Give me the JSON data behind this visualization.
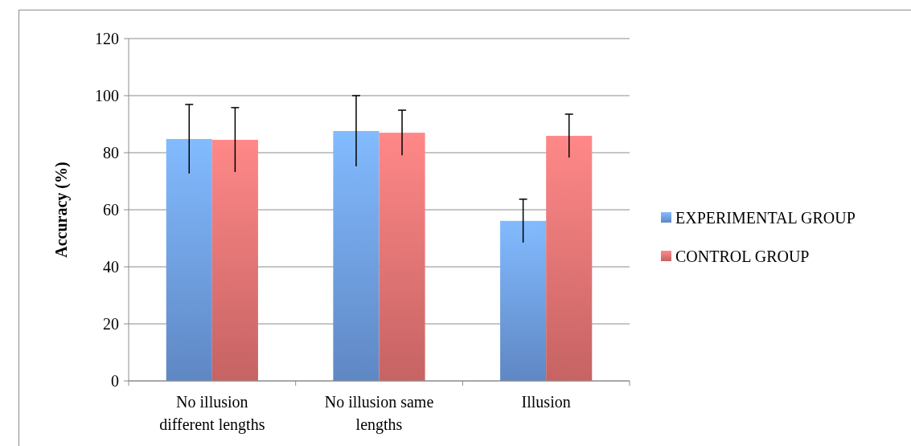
{
  "chart_data": {
    "type": "bar",
    "ylabel": "Accuracy (%)",
    "categories": [
      "No illusion different lengths",
      "No illusion same lengths",
      "Illusion"
    ],
    "series": [
      {
        "name": "EXPERIMENTAL GROUP",
        "color": "#6f9fe6",
        "values": [
          84.8,
          87.6,
          56.1
        ],
        "errors": [
          12.1,
          12.4,
          7.6
        ]
      },
      {
        "name": "CONTROL GROUP",
        "color": "#e87474",
        "values": [
          84.5,
          87,
          85.9
        ],
        "errors": [
          11.3,
          7.9,
          7.6
        ]
      }
    ],
    "ylim": [
      0,
      120
    ],
    "yticks": [
      0,
      20,
      40,
      60,
      80,
      100,
      120
    ],
    "grid": "y",
    "legend": "right"
  }
}
